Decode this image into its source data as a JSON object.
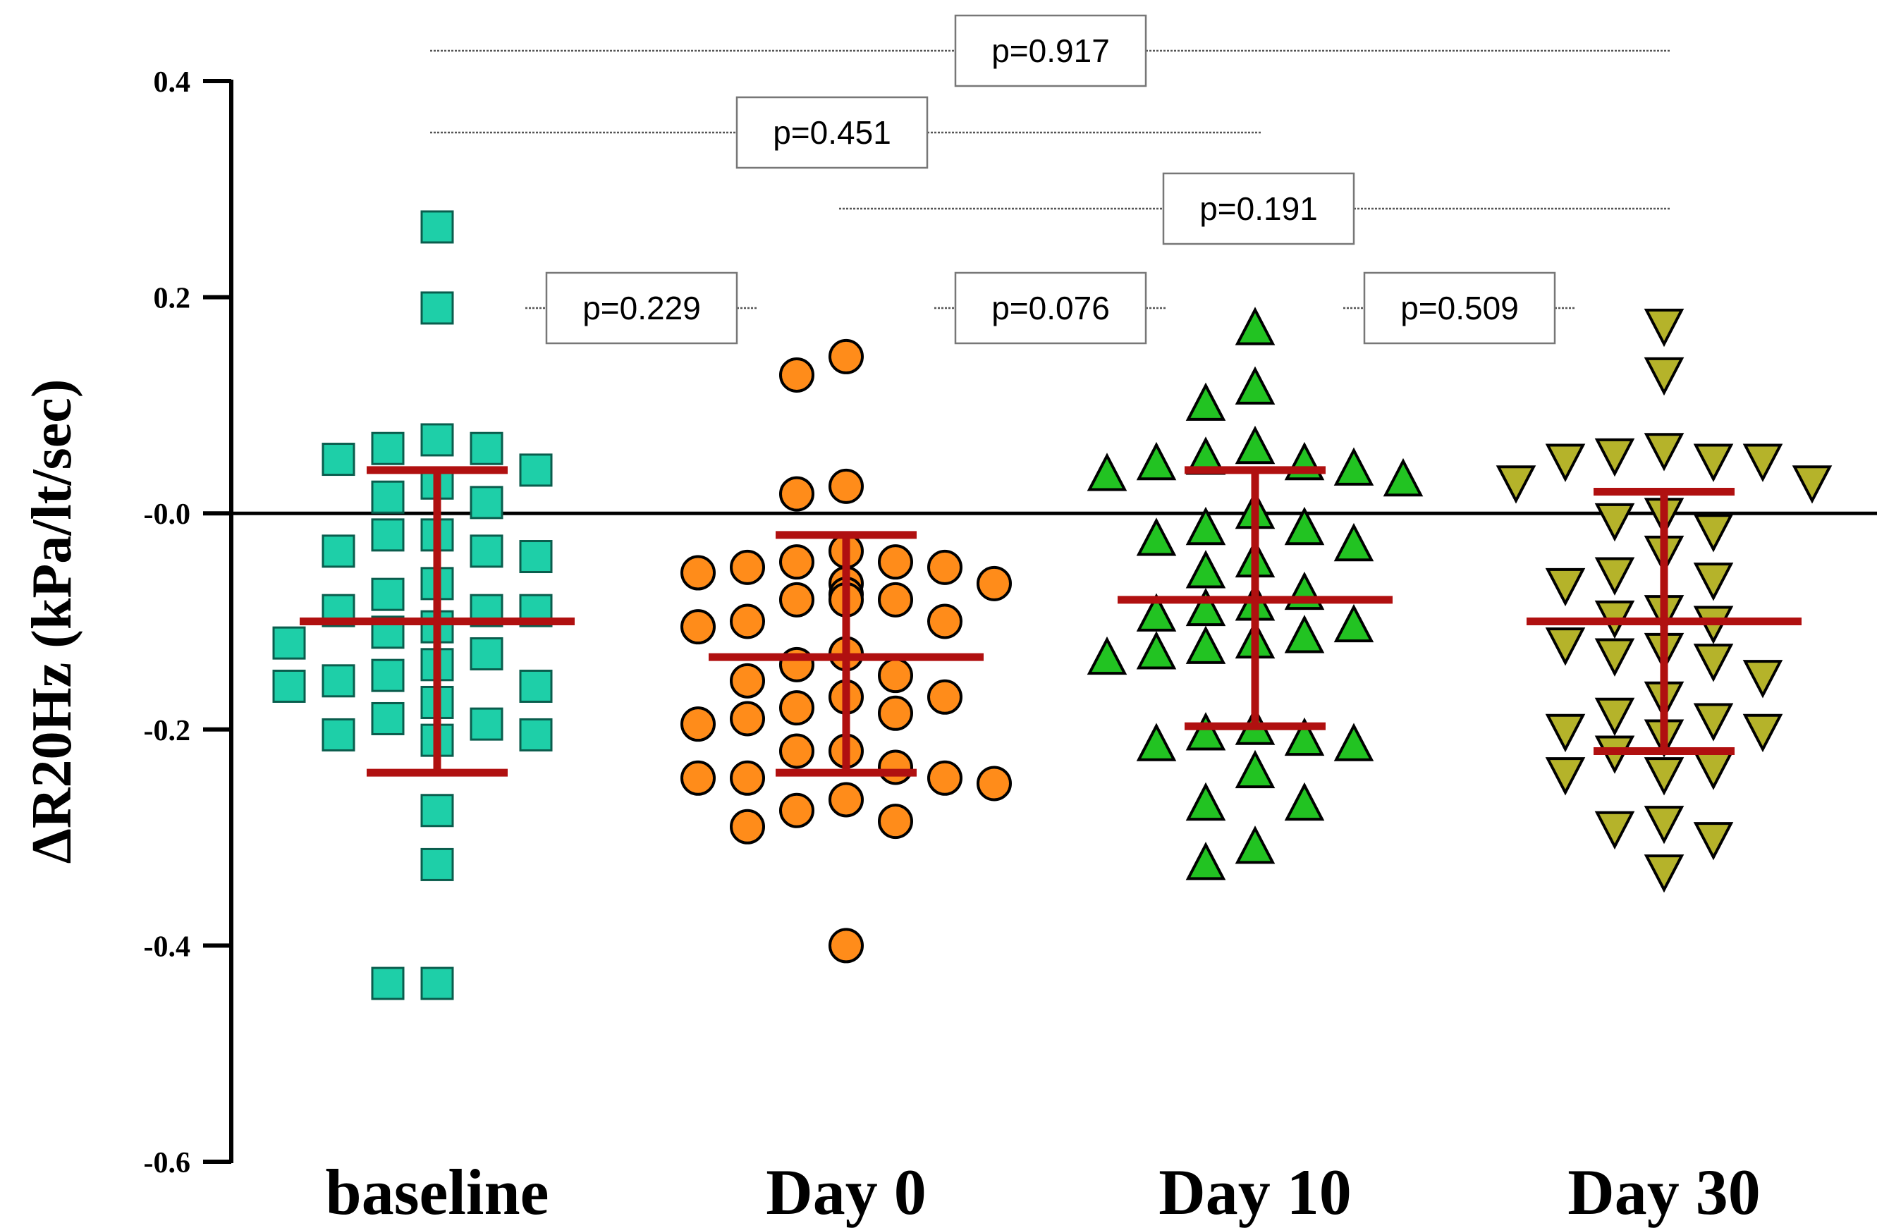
{
  "chart_data": {
    "type": "scatter",
    "title": "",
    "xlabel": "",
    "ylabel": "ΔR20Hz (kPa/lt/sec)",
    "ylim": [
      -0.6,
      0.4
    ],
    "yticks": [
      {
        "value": 0.4,
        "label": "0.4"
      },
      {
        "value": 0.2,
        "label": "0.2"
      },
      {
        "value": 0.0,
        "label": "-0.0"
      },
      {
        "value": -0.2,
        "label": "-0.2"
      },
      {
        "value": -0.4,
        "label": "-0.4"
      },
      {
        "value": -0.6,
        "label": "-0.6"
      }
    ],
    "reference_line": 0.0,
    "categories": [
      "baseline",
      "Day 0",
      "Day 10",
      "Day 30"
    ],
    "series": [
      {
        "name": "baseline",
        "marker": "square",
        "color": "#1ecfa8",
        "mean": -0.1,
        "sd_upper": 0.04,
        "sd_lower": -0.24,
        "values": [
          0.265,
          0.19,
          0.068,
          0.06,
          0.06,
          0.05,
          0.04,
          0.028,
          0.015,
          0.01,
          -0.02,
          -0.02,
          -0.035,
          -0.035,
          -0.04,
          -0.065,
          -0.075,
          -0.09,
          -0.09,
          -0.09,
          -0.105,
          -0.11,
          -0.12,
          -0.13,
          -0.14,
          -0.15,
          -0.155,
          -0.16,
          -0.16,
          -0.175,
          -0.19,
          -0.195,
          -0.205,
          -0.205,
          -0.21,
          -0.275,
          -0.325,
          -0.435,
          -0.435
        ]
      },
      {
        "name": "Day 0",
        "marker": "circle",
        "color": "#ff8c1a",
        "mean": -0.133,
        "sd_upper": -0.02,
        "sd_lower": -0.24,
        "values": [
          0.145,
          0.128,
          0.025,
          0.018,
          -0.035,
          -0.045,
          -0.045,
          -0.05,
          -0.05,
          -0.055,
          -0.065,
          -0.065,
          -0.075,
          -0.08,
          -0.08,
          -0.08,
          -0.1,
          -0.1,
          -0.105,
          -0.13,
          -0.14,
          -0.15,
          -0.155,
          -0.17,
          -0.17,
          -0.18,
          -0.185,
          -0.19,
          -0.195,
          -0.22,
          -0.22,
          -0.235,
          -0.245,
          -0.245,
          -0.245,
          -0.25,
          -0.265,
          -0.275,
          -0.285,
          -0.29,
          -0.4
        ]
      },
      {
        "name": "Day 10",
        "marker": "triangle-up",
        "color": "#22c322",
        "mean": -0.08,
        "sd_upper": 0.04,
        "sd_lower": -0.197,
        "values": [
          0.17,
          0.115,
          0.1,
          0.06,
          0.05,
          0.045,
          0.045,
          0.04,
          0.035,
          0.03,
          0.0,
          -0.015,
          -0.015,
          -0.025,
          -0.03,
          -0.045,
          -0.055,
          -0.075,
          -0.085,
          -0.09,
          -0.095,
          -0.105,
          -0.115,
          -0.12,
          -0.125,
          -0.13,
          -0.135,
          -0.2,
          -0.205,
          -0.21,
          -0.215,
          -0.215,
          -0.24,
          -0.27,
          -0.27,
          -0.31,
          -0.325
        ]
      },
      {
        "name": "Day 30",
        "marker": "triangle-down",
        "color": "#b5b32a",
        "mean": -0.1,
        "sd_upper": 0.02,
        "sd_lower": -0.22,
        "values": [
          0.175,
          0.13,
          0.06,
          0.055,
          0.05,
          0.05,
          0.05,
          0.03,
          0.03,
          0.0,
          -0.005,
          -0.015,
          -0.035,
          -0.055,
          -0.06,
          -0.065,
          -0.09,
          -0.095,
          -0.1,
          -0.12,
          -0.125,
          -0.13,
          -0.135,
          -0.15,
          -0.17,
          -0.185,
          -0.19,
          -0.2,
          -0.2,
          -0.205,
          -0.22,
          -0.235,
          -0.24,
          -0.24,
          -0.285,
          -0.29,
          -0.3,
          -0.33
        ]
      }
    ],
    "comparisons": [
      {
        "from": 0,
        "to": 3,
        "label": "p=0.917"
      },
      {
        "from": 0,
        "to": 2,
        "label": "p=0.451"
      },
      {
        "from": 1,
        "to": 3,
        "label": "p=0.191"
      },
      {
        "from": 0,
        "to": 1,
        "label": "p=0.229"
      },
      {
        "from": 1,
        "to": 2,
        "label": "p=0.076"
      },
      {
        "from": 2,
        "to": 3,
        "label": "p=0.509"
      }
    ]
  }
}
